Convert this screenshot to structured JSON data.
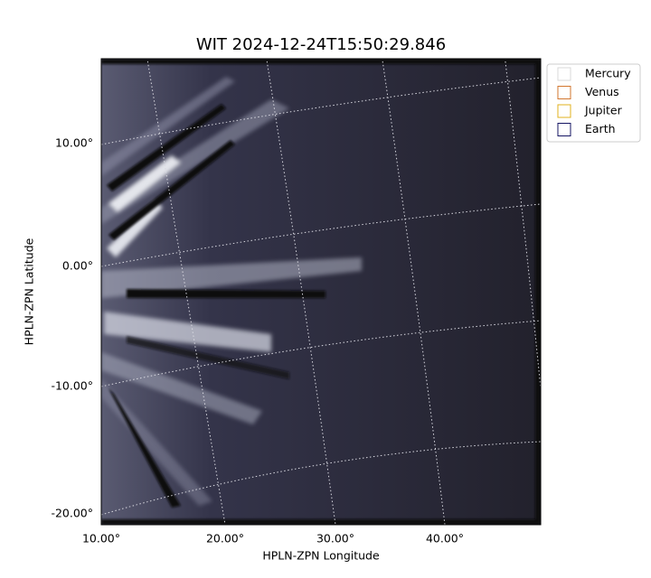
{
  "title": "WIT 2024-12-24T15:50:29.846",
  "axes": {
    "x_label": "HPLN-ZPN Longitude",
    "y_label": "HPLN-ZPN Latitude",
    "x_ticks": [
      "10.00°",
      "20.00°",
      "30.00°",
      "40.00°"
    ],
    "y_ticks": [
      "10.00°",
      "0.00°",
      "-10.00°",
      "-20.00°"
    ]
  },
  "legend": [
    {
      "name": "Mercury",
      "color": "#d9d9d9"
    },
    {
      "name": "Venus",
      "color": "#d2762e"
    },
    {
      "name": "Jupiter",
      "color": "#e0b21c"
    },
    {
      "name": "Earth",
      "color": "#151563"
    }
  ]
}
